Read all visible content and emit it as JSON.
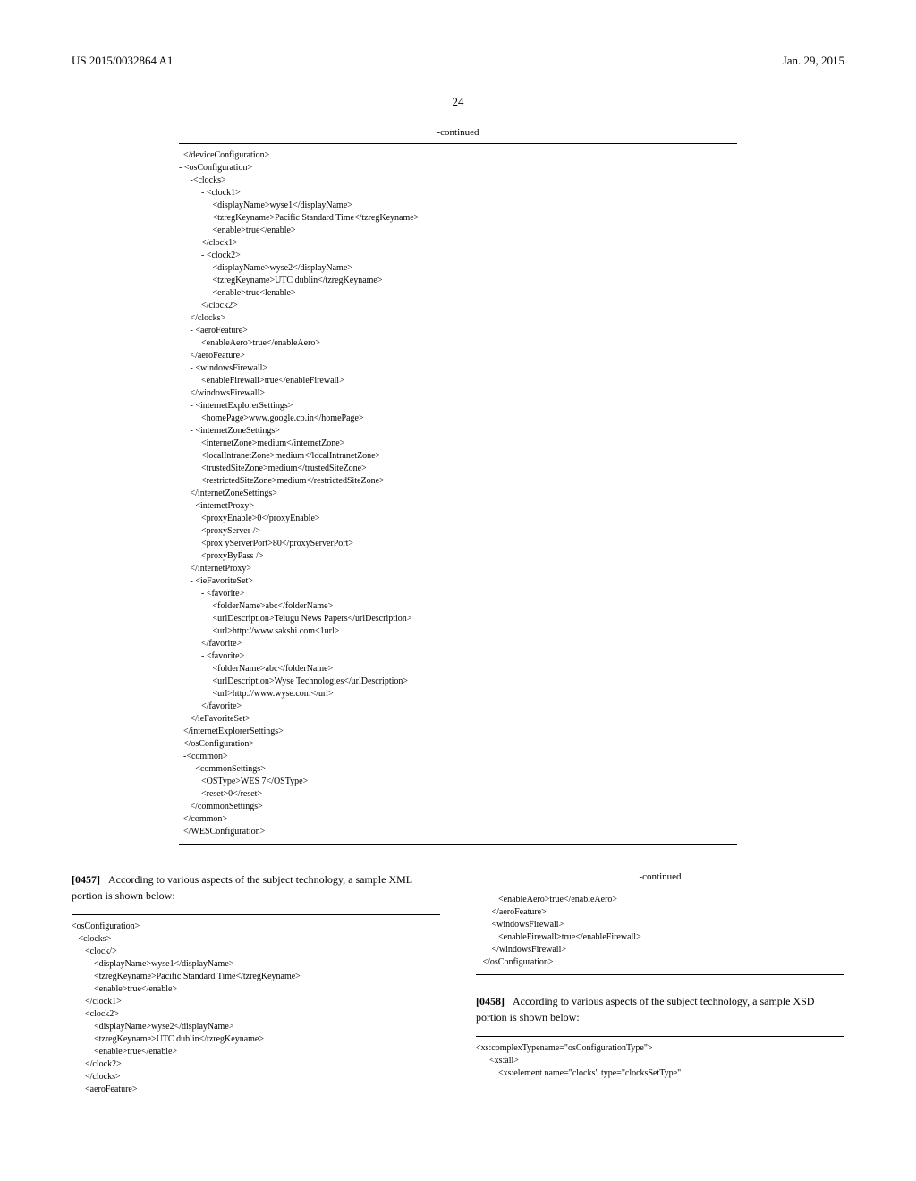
{
  "header": {
    "left": "US 2015/0032864 A1",
    "right": "Jan. 29, 2015"
  },
  "page_number": "24",
  "continued_label": "-continued",
  "main_code": "  </deviceConfiguration>\n- <osConfiguration>\n     -<clocks>\n          - <clock1>\n               <displayName>wyse1</displayName>\n               <tzregKeyname>Pacific Standard Time</tzregKeyname>\n               <enable>true</enable>\n          </clock1>\n          - <clock2>\n               <displayName>wyse2</displayName>\n               <tzregKeyname>UTC dublin</tzregKeyname>\n               <enable>true<lenable>\n          </clock2>\n     </clocks>\n     - <aeroFeature>\n          <enableAero>true</enableAero>\n     </aeroFeature>\n     - <windowsFirewall>\n          <enableFirewall>true</enableFirewall>\n     </windowsFirewall>\n     - <internetExplorerSettings>\n          <homePage>www.google.co.in</homePage>\n     - <internetZoneSettings>\n          <internetZone>medium</internetZone>\n          <localIntranetZone>medium</localIntranetZone>\n          <trustedSiteZone>medium</trustedSiteZone>\n          <restrictedSiteZone>medium</restrictedSiteZone>\n     </internetZoneSettings>\n     - <internetProxy>\n          <proxyEnable>0</proxyEnable>\n          <proxyServer />\n          <prox yServerPort>80</proxyServerPort>\n          <proxyByPass />\n     </internetProxy>\n     - <ieFavoriteSet>\n          - <favorite>\n               <folderName>abc</folderName>\n               <urlDescription>Telugu News Papers</urlDescription>\n               <url>http://www.sakshi.com<1url>\n          </favorite>\n          - <favorite>\n               <folderName>abc</folderName>\n               <urlDescription>Wyse Technologies</urlDescription>\n               <url>http://www.wyse.com</url>\n          </favorite>\n     </ieFavoriteSet>\n  </internetExplorerSettings>\n  </osConfiguration>\n  -<common>\n     - <commonSettings>\n          <OSType>WES 7</OSType>\n          <reset>0</reset>\n     </commonSettings>\n  </common>\n  </WESConfiguration>",
  "para_0457_num": "[0457]",
  "para_0457_text": "According to various aspects of the subject technology, a sample XML portion is shown below:",
  "left_code": "<osConfiguration>\n   <clocks>\n      <clock/>\n          <displayName>wyse1</displayName>\n          <tzregKeyname>Pacific Standard Time</tzregKeyname>\n          <enable>true</enable>\n      </clock1>\n      <clock2>\n          <displayName>wyse2</displayName>\n          <tzregKeyname>UTC dublin</tzregKeyname>\n          <enable>true</enable>\n      </clock2>\n      </clocks>\n      <aeroFeature>",
  "right_code_top": "          <enableAero>true</enableAero>\n       </aeroFeature>\n       <windowsFirewall>\n          <enableFirewall>true</enableFirewall>\n       </windowsFirewall>\n   </osConfiguration>",
  "para_0458_num": "[0458]",
  "para_0458_text": "According to various aspects of the subject technology, a sample XSD portion is shown below:",
  "right_code_bottom": "<xs:complexTypename=\"osConfigurationType\">\n      <xs:all>\n          <xs:element name=\"clocks\" type=\"clocksSetType\""
}
